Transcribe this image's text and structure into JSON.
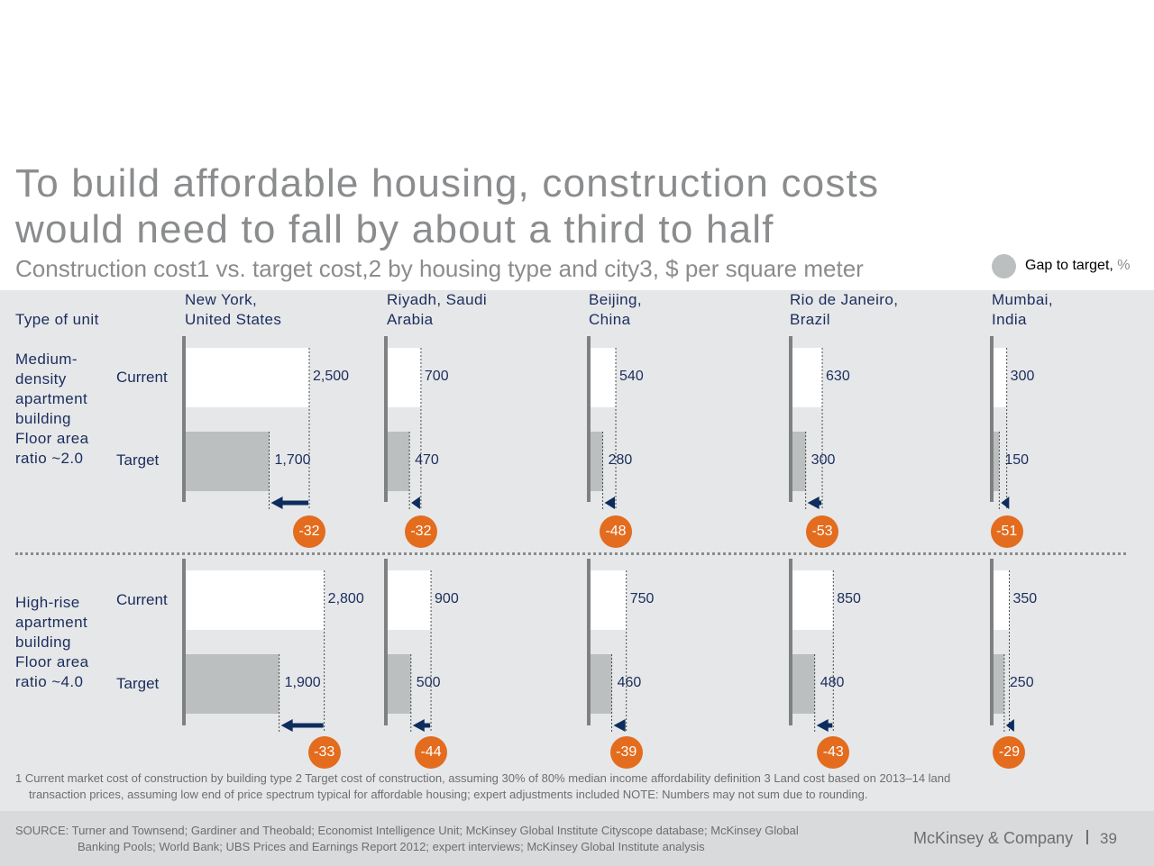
{
  "title": "To build affordable housing, construction costs would need to fall by about a third to half",
  "subtitle": "Construction cost1 vs. target cost,2 by housing type and city3, $ per square meter",
  "legend": {
    "label": "Gap to target,",
    "unit": "%"
  },
  "type_of_unit_label": "Type of unit",
  "row_labels": {
    "current": "Current",
    "target": "Target"
  },
  "colors": {
    "current_bar": "#ffffff",
    "target_bar": "#bcbfbf",
    "gap_badge": "#e36c1e",
    "arrow": "#0c2d5e",
    "axis": "#7f8081",
    "panel": "#e6e7e8"
  },
  "chart_data": {
    "type": "bar",
    "orientation": "horizontal",
    "unit": "$ per square meter",
    "cities": [
      "New York,\nUnited States",
      "Riyadh, Saudi\nArabia",
      "Beijing,\nChina",
      "Rio de Janeiro,\nBrazil",
      "Mumbai,\nIndia"
    ],
    "groups": [
      {
        "unit_type": "Medium-\ndensity\napartment\nbuilding\nFloor area\nratio ~2.0",
        "series": [
          {
            "name": "Current",
            "values": [
              2500,
              700,
              540,
              630,
              300
            ],
            "labels": [
              "2,500",
              "700",
              "540",
              "630",
              "300"
            ]
          },
          {
            "name": "Target",
            "values": [
              1700,
              470,
              280,
              300,
              150
            ],
            "labels": [
              "1,700",
              "470",
              "280",
              "300",
              "150"
            ]
          }
        ],
        "gap_to_target_pct": [
          -32,
          -32,
          -48,
          -53,
          -51
        ],
        "gap_labels": [
          "-32",
          "-32",
          "-48",
          "-53",
          "-51"
        ]
      },
      {
        "unit_type": "High-rise\napartment\nbuilding\nFloor area\nratio ~4.0",
        "series": [
          {
            "name": "Current",
            "values": [
              2800,
              900,
              750,
              850,
              350
            ],
            "labels": [
              "2,800",
              "900",
              "750",
              "850",
              "350"
            ]
          },
          {
            "name": "Target",
            "values": [
              1900,
              500,
              460,
              480,
              250
            ],
            "labels": [
              "1,900",
              "500",
              "460",
              "480",
              "250"
            ]
          }
        ],
        "gap_to_target_pct": [
          -33,
          -44,
          -39,
          -43,
          -29
        ],
        "gap_labels": [
          "-33",
          "-44",
          "-39",
          "-43",
          "-29"
        ]
      }
    ]
  },
  "footnote": {
    "line1": "1  Current market cost of construction by building type    2 Target cost of construction, assuming 30% of 80% median income affordability definition    3 Land cost based on 2013–14 land",
    "line2": "transaction prices, assuming low end of price spectrum typical for affordable housing; expert adjustments included    NOTE: Numbers may not sum due to rounding."
  },
  "source": {
    "line1": "SOURCE: Turner and Townsend; Gardiner and Theobald; Economist Intelligence Unit; McKinsey Global Institute Cityscope database; McKinsey Global",
    "line2": "Banking Pools; World Bank; UBS Prices and Earnings Report 2012; expert interviews; McKinsey Global Institute analysis"
  },
  "brand": "McKinsey & Company",
  "page_number": "39"
}
